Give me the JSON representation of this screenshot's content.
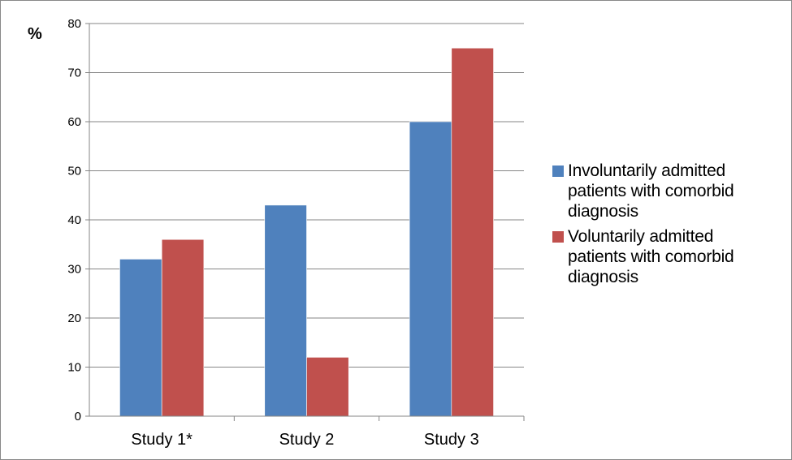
{
  "chart_data": {
    "type": "bar",
    "title": "",
    "xlabel": "",
    "ylabel": "%",
    "ylim": [
      0,
      80
    ],
    "yticks": [
      0,
      10,
      20,
      30,
      40,
      50,
      60,
      70,
      80
    ],
    "grid": true,
    "legend_position": "right",
    "categories": [
      "Study 1*",
      "Study 2",
      "Study 3"
    ],
    "series": [
      {
        "name": "Involuntarily admitted patients with comorbid diagnosis",
        "legend_lines": [
          "Involuntarily admitted",
          "patients with comorbid",
          "diagnosis"
        ],
        "color": "#4f81bd",
        "values": [
          32,
          43,
          60
        ]
      },
      {
        "name": "Voluntarily admitted patients with comorbid diagnosis",
        "legend_lines": [
          "Voluntarily admitted",
          "patients with comorbid",
          "diagnosis"
        ],
        "color": "#c0504d",
        "values": [
          36,
          12,
          75
        ]
      }
    ]
  }
}
